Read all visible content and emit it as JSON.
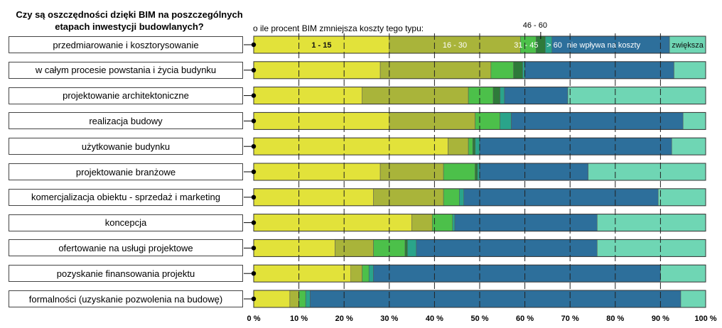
{
  "chart_data": {
    "type": "bar",
    "orientation": "horizontal",
    "stacked": true,
    "title": "Czy są oszczędności dzięki BIM na poszczególnych etapach inwestycji budowlanych?",
    "subtitle": "o ile procent BIM zmniejsza koszty tego typu:",
    "xlim": [
      0,
      100
    ],
    "xticks": [
      "0 %",
      "10 %",
      "20 %",
      "30 %",
      "40 %",
      "50 %",
      "60 %",
      "70 %",
      "80 %",
      "90 %",
      "100 %"
    ],
    "legend_placement": "inside first bar",
    "categories": [
      "przedmiarowanie i kosztorysowanie",
      "w całym procesie powstania i życia budynku",
      "projektowanie architektoniczne",
      "realizacja budowy",
      "użytkowanie budynku",
      "projektowanie branżowe",
      "komercjalizacja obiektu - sprzedaż i marketing",
      "koncepcja",
      "ofertowanie na usługi projektowe",
      "pozyskanie finansowania projektu",
      "formalności (uzyskanie pozwolenia na budowę)"
    ],
    "series": [
      {
        "name": "1 - 15",
        "color": "#e2e23a",
        "values": [
          30,
          28,
          24,
          30,
          43,
          28,
          26.5,
          35,
          18,
          21.5,
          8
        ]
      },
      {
        "name": "16 - 30",
        "color": "#a9b43a",
        "values": [
          29,
          24.5,
          23.5,
          19,
          4.5,
          14,
          15.5,
          4.5,
          8.5,
          2.5,
          2
        ]
      },
      {
        "name": "31 - 45",
        "color": "#4cc04a",
        "values": [
          3.5,
          5,
          5.5,
          5.5,
          1,
          7,
          3.5,
          4.5,
          7,
          1.5,
          1.5
        ]
      },
      {
        "name": "46 - 60",
        "color": "#2e7a3a",
        "values": [
          2,
          2,
          1.5,
          0,
          0.5,
          0.5,
          0,
          0,
          0.5,
          0,
          0
        ]
      },
      {
        "name": "> 60",
        "color": "#2aa48a",
        "values": [
          1.5,
          0.5,
          1,
          2.5,
          1,
          0.5,
          1,
          0.5,
          2,
          1,
          1
        ]
      },
      {
        "name": "nie wpływa na koszty",
        "color": "#2d6f9b",
        "values": [
          26,
          33,
          14,
          38,
          42.5,
          24,
          43,
          31.5,
          40,
          63.5,
          82
        ]
      },
      {
        "name": "zwiększa",
        "color": "#6fd6b4",
        "values": [
          8,
          7,
          30.5,
          5,
          7.5,
          26,
          10.5,
          24,
          24,
          10,
          5.5
        ]
      }
    ]
  }
}
